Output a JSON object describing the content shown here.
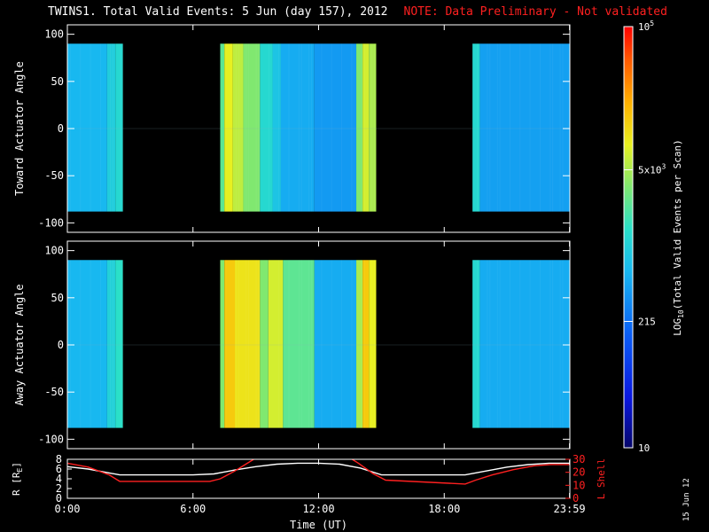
{
  "title": {
    "main": "TWINS1. Total Valid Events:  5 Jun (day 157), 2012",
    "note": "NOTE: Data Preliminary - Not validated"
  },
  "stamp": "15 Jun 12",
  "colors": {
    "background": "#000000",
    "axes": "#ffffff",
    "note": "#ff2020",
    "lshell_line": "#ff2020",
    "r_line": "#ffffff"
  },
  "chart_data": [
    {
      "type": "heatmap",
      "panel": "top",
      "ylabel": "Toward Actuator Angle",
      "ylim": [
        -110,
        110
      ],
      "yticks": [
        100,
        50,
        0,
        -50,
        -100
      ],
      "xlim_hours": [
        0,
        24
      ],
      "data_angle_range": [
        -88,
        90
      ],
      "intervals": [
        {
          "start": 0.0,
          "end": 2.65
        },
        {
          "start": 7.3,
          "end": 14.75
        },
        {
          "start": 19.35,
          "end": 24.0
        }
      ],
      "levels": [
        {
          "start": 0.0,
          "end": 1.9,
          "value": 0.42
        },
        {
          "start": 1.9,
          "end": 2.3,
          "value": 0.47
        },
        {
          "start": 2.3,
          "end": 2.65,
          "value": 0.5
        },
        {
          "start": 7.3,
          "end": 7.5,
          "value": 0.58
        },
        {
          "start": 7.5,
          "end": 7.9,
          "value": 0.72
        },
        {
          "start": 7.9,
          "end": 8.4,
          "value": 0.68
        },
        {
          "start": 8.4,
          "end": 9.2,
          "value": 0.62
        },
        {
          "start": 9.2,
          "end": 9.8,
          "value": 0.5
        },
        {
          "start": 9.8,
          "end": 10.2,
          "value": 0.45
        },
        {
          "start": 10.2,
          "end": 11.8,
          "value": 0.4
        },
        {
          "start": 11.8,
          "end": 13.8,
          "value": 0.37
        },
        {
          "start": 13.8,
          "end": 14.1,
          "value": 0.62
        },
        {
          "start": 14.1,
          "end": 14.4,
          "value": 0.7
        },
        {
          "start": 14.4,
          "end": 14.75,
          "value": 0.66
        },
        {
          "start": 19.35,
          "end": 19.7,
          "value": 0.5
        },
        {
          "start": 19.7,
          "end": 24.0,
          "value": 0.38
        }
      ]
    },
    {
      "type": "heatmap",
      "panel": "bottom",
      "ylabel": "Away Actuator Angle",
      "ylim": [
        -110,
        110
      ],
      "yticks": [
        100,
        50,
        0,
        -50,
        -100
      ],
      "xlim_hours": [
        0,
        24
      ],
      "data_angle_range": [
        -88,
        90
      ],
      "intervals": [
        {
          "start": 0.0,
          "end": 2.65
        },
        {
          "start": 7.3,
          "end": 14.75
        },
        {
          "start": 19.35,
          "end": 24.0
        }
      ],
      "levels": [
        {
          "start": 0.0,
          "end": 1.9,
          "value": 0.42
        },
        {
          "start": 1.9,
          "end": 2.3,
          "value": 0.48
        },
        {
          "start": 2.3,
          "end": 2.65,
          "value": 0.52
        },
        {
          "start": 7.3,
          "end": 7.5,
          "value": 0.62
        },
        {
          "start": 7.5,
          "end": 8.0,
          "value": 0.78
        },
        {
          "start": 8.0,
          "end": 9.2,
          "value": 0.74
        },
        {
          "start": 9.2,
          "end": 9.6,
          "value": 0.62
        },
        {
          "start": 9.6,
          "end": 10.3,
          "value": 0.7
        },
        {
          "start": 10.3,
          "end": 11.8,
          "value": 0.58
        },
        {
          "start": 11.8,
          "end": 13.8,
          "value": 0.4
        },
        {
          "start": 13.8,
          "end": 14.1,
          "value": 0.66
        },
        {
          "start": 14.1,
          "end": 14.4,
          "value": 0.78
        },
        {
          "start": 14.4,
          "end": 14.75,
          "value": 0.72
        },
        {
          "start": 19.35,
          "end": 19.7,
          "value": 0.5
        },
        {
          "start": 19.7,
          "end": 24.0,
          "value": 0.4
        }
      ]
    },
    {
      "type": "line",
      "panel": "orbit",
      "xlabel": "Time (UT)",
      "xticks": [
        {
          "hour": 0,
          "label": "0:00"
        },
        {
          "hour": 6,
          "label": "6:00"
        },
        {
          "hour": 12,
          "label": "12:00"
        },
        {
          "hour": 18,
          "label": "18:00"
        },
        {
          "hour": 23.983,
          "label": "23:59"
        }
      ],
      "ylabel_left": "R [R",
      "ylabel_left_sub": "E",
      "ylabel_left_close": "]",
      "ylabel_right": "L Shell",
      "ylim_left": [
        0,
        8
      ],
      "yticks_left": [
        0,
        2,
        4,
        6,
        8
      ],
      "ylim_right": [
        0,
        30
      ],
      "yticks_right": [
        0,
        10,
        20,
        30
      ],
      "series": [
        {
          "axis": "left",
          "color": "#ffffff",
          "x": [
            0,
            1,
            2,
            2.5,
            3,
            6,
            7,
            8,
            9,
            10,
            11,
            12,
            13,
            14,
            15,
            18,
            19,
            20,
            21,
            22,
            23,
            24
          ],
          "y": [
            6.5,
            6.0,
            5.2,
            4.8,
            4.8,
            4.8,
            5.0,
            5.8,
            6.5,
            7.0,
            7.2,
            7.2,
            7.0,
            6.2,
            4.8,
            4.8,
            4.8,
            5.6,
            6.4,
            6.9,
            7.2,
            7.2
          ]
        },
        {
          "axis": "right",
          "color": "#ff2020",
          "x": [
            0,
            1,
            2,
            2.5,
            6.8,
            7.3,
            8.0,
            8.6,
            9.2,
            13.3,
            13.9,
            14.6,
            15.2,
            19.0,
            19.5,
            20.3,
            21.3,
            22.3,
            23.1,
            24.0
          ],
          "y": [
            27,
            24,
            18,
            13,
            13,
            15,
            21,
            27,
            33,
            33,
            27,
            19,
            14,
            11,
            14,
            18,
            22,
            25,
            26,
            26
          ]
        }
      ]
    }
  ],
  "colorbar": {
    "label_log": "LOG",
    "label_sub": "10",
    "label_rest": "(Total Valid Events per Scan)",
    "ticks": [
      {
        "value": 10,
        "label": "10",
        "frac": 0.0
      },
      {
        "value": 215,
        "label": "215",
        "frac": 0.3
      },
      {
        "value": 5000,
        "label": "5x10",
        "sup": "3",
        "frac": 0.66
      },
      {
        "value": 100000,
        "label": "10",
        "sup": "5",
        "frac": 1.0
      }
    ]
  }
}
